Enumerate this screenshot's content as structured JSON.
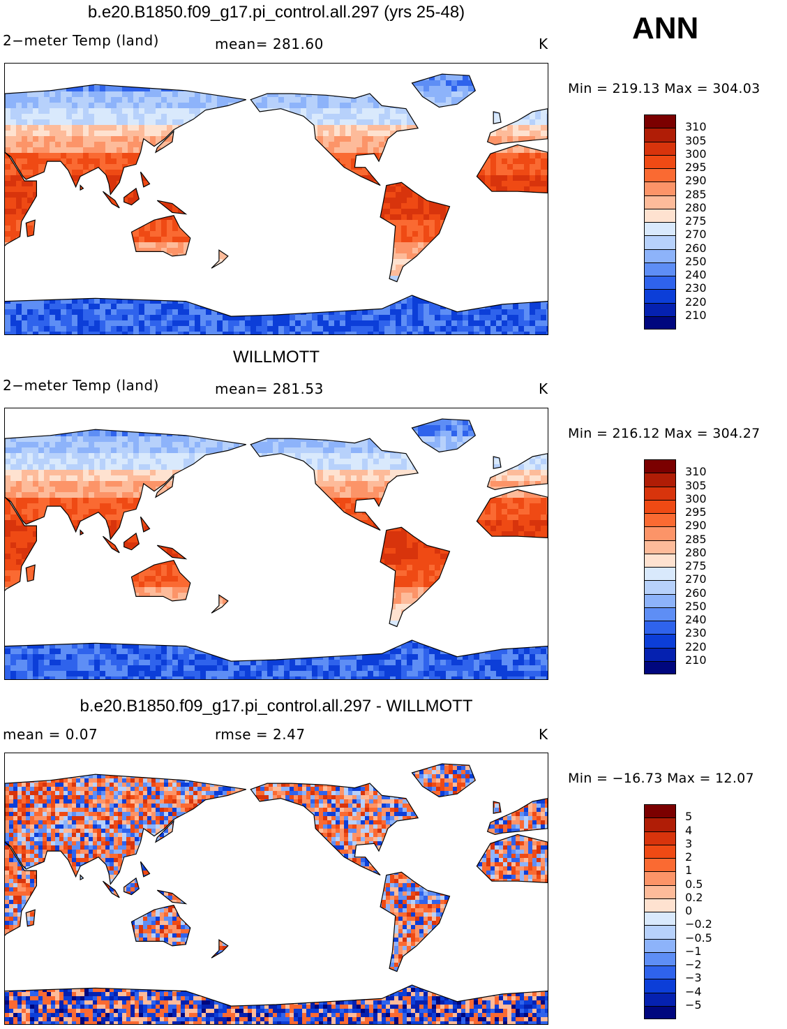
{
  "season": "ANN",
  "panels": [
    {
      "title": "b.e20.B1850.f09_g17.pi_control.all.297 (yrs 25-48)",
      "left_label": "2−meter Temp (land)",
      "center_label": "mean=  281.60",
      "unit": "K",
      "min_max": "Min = 219.13 Max = 304.03",
      "colorbar_labels": [
        "310",
        "305",
        "300",
        "295",
        "290",
        "285",
        "280",
        "275",
        "270",
        "260",
        "250",
        "240",
        "230",
        "220",
        "210"
      ]
    },
    {
      "title": "WILLMOTT",
      "left_label": "2−meter Temp (land)",
      "center_label": "mean=  281.53",
      "unit": "K",
      "min_max": "Min = 216.12 Max = 304.27",
      "colorbar_labels": [
        "310",
        "305",
        "300",
        "295",
        "290",
        "285",
        "280",
        "275",
        "270",
        "260",
        "250",
        "240",
        "230",
        "220",
        "210"
      ]
    },
    {
      "title": "b.e20.B1850.f09_g17.pi_control.all.297 - WILLMOTT",
      "left_label": "mean =     0.07",
      "center_label": "rmse =     2.47",
      "unit": "K",
      "min_max": "Min = −16.73 Max =   12.07",
      "colorbar_labels": [
        "5",
        "4",
        "3",
        "2",
        "1",
        "0.5",
        "0.2",
        "0",
        "−0.2",
        "−0.5",
        "−1",
        "−2",
        "−3",
        "−4",
        "−5"
      ]
    }
  ],
  "colors": {
    "colorbar": [
      "#7b0000",
      "#b01d06",
      "#d8340c",
      "#ef4a14",
      "#fa6a32",
      "#fc9468",
      "#fdbb9a",
      "#fee2d0",
      "#d9e9fc",
      "#b7d1fb",
      "#8db3fa",
      "#5e8ef5",
      "#2f63ec",
      "#0c3ed8",
      "#0521b0",
      "#00077e"
    ],
    "ocean": "#ffffff",
    "coastline": "#000000"
  }
}
